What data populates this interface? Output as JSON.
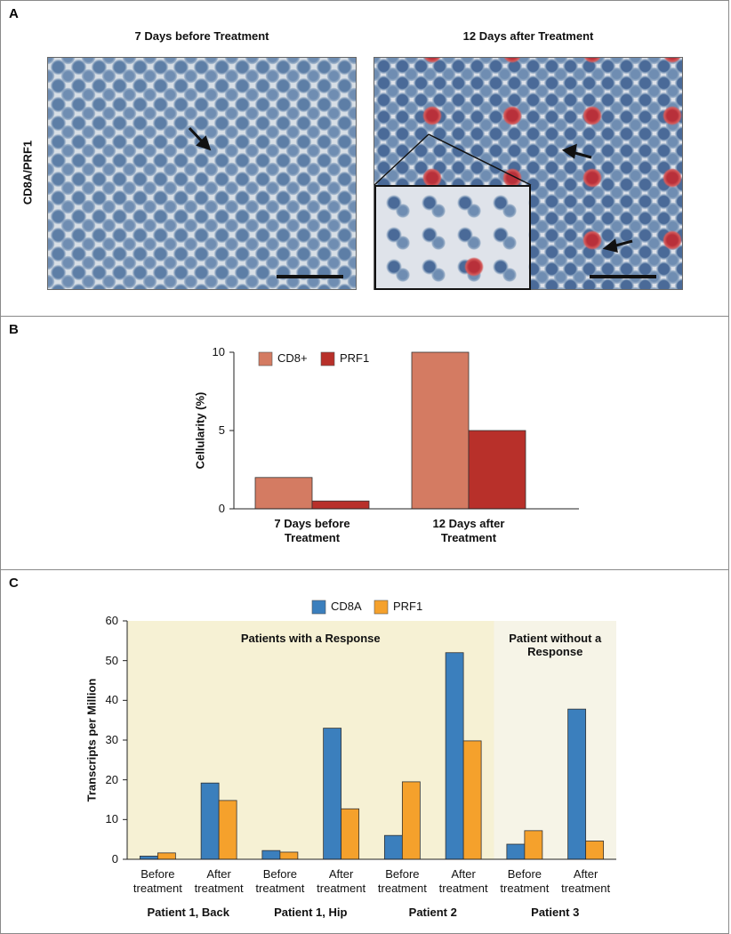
{
  "panel_a": {
    "label": "A",
    "y_label": "CD8A/PRF1",
    "images": [
      {
        "title": "7 Days before Treatment"
      },
      {
        "title": "12 Days after Treatment"
      }
    ]
  },
  "chart_data": [
    {
      "type": "bar",
      "panel_label": "B",
      "ylabel": "Cellularity (%)",
      "categories": [
        "7 Days before Treatment",
        "12 Days after Treatment"
      ],
      "series": [
        {
          "name": "CD8+",
          "color": "#d47b62",
          "values": [
            2,
            10
          ]
        },
        {
          "name": "PRF1",
          "color": "#b8302a",
          "values": [
            0.5,
            5
          ]
        }
      ],
      "ylim": [
        0,
        10
      ],
      "yticks": [
        0,
        5,
        10
      ],
      "legend": "top"
    },
    {
      "type": "bar",
      "panel_label": "C",
      "ylabel": "Transcripts per Million",
      "categories": [
        "Before treatment",
        "After treatment",
        "Before treatment",
        "After treatment",
        "Before treatment",
        "After treatment",
        "Before treatment",
        "After treatment"
      ],
      "group_labels": [
        "Patient 1, Back",
        "Patient 1, Hip",
        "Patient 2",
        "Patient 3"
      ],
      "series": [
        {
          "name": "CD8A",
          "color": "#3b7fbd",
          "values": [
            0.8,
            19.2,
            2.2,
            33,
            6,
            52,
            3.8,
            37.8
          ]
        },
        {
          "name": "PRF1",
          "color": "#f5a12c",
          "values": [
            1.6,
            14.8,
            1.8,
            12.7,
            19.5,
            29.8,
            7.2,
            4.6
          ]
        }
      ],
      "regions": [
        {
          "label": "Patients with a Response",
          "start": 0,
          "end": 5,
          "color": "#f6f1d4"
        },
        {
          "label": "Patient without a Response",
          "start": 6,
          "end": 7,
          "color": "#f6f4e7"
        }
      ],
      "ylim": [
        0,
        60
      ],
      "yticks": [
        0,
        10,
        20,
        30,
        40,
        50,
        60
      ],
      "legend": "top"
    }
  ]
}
